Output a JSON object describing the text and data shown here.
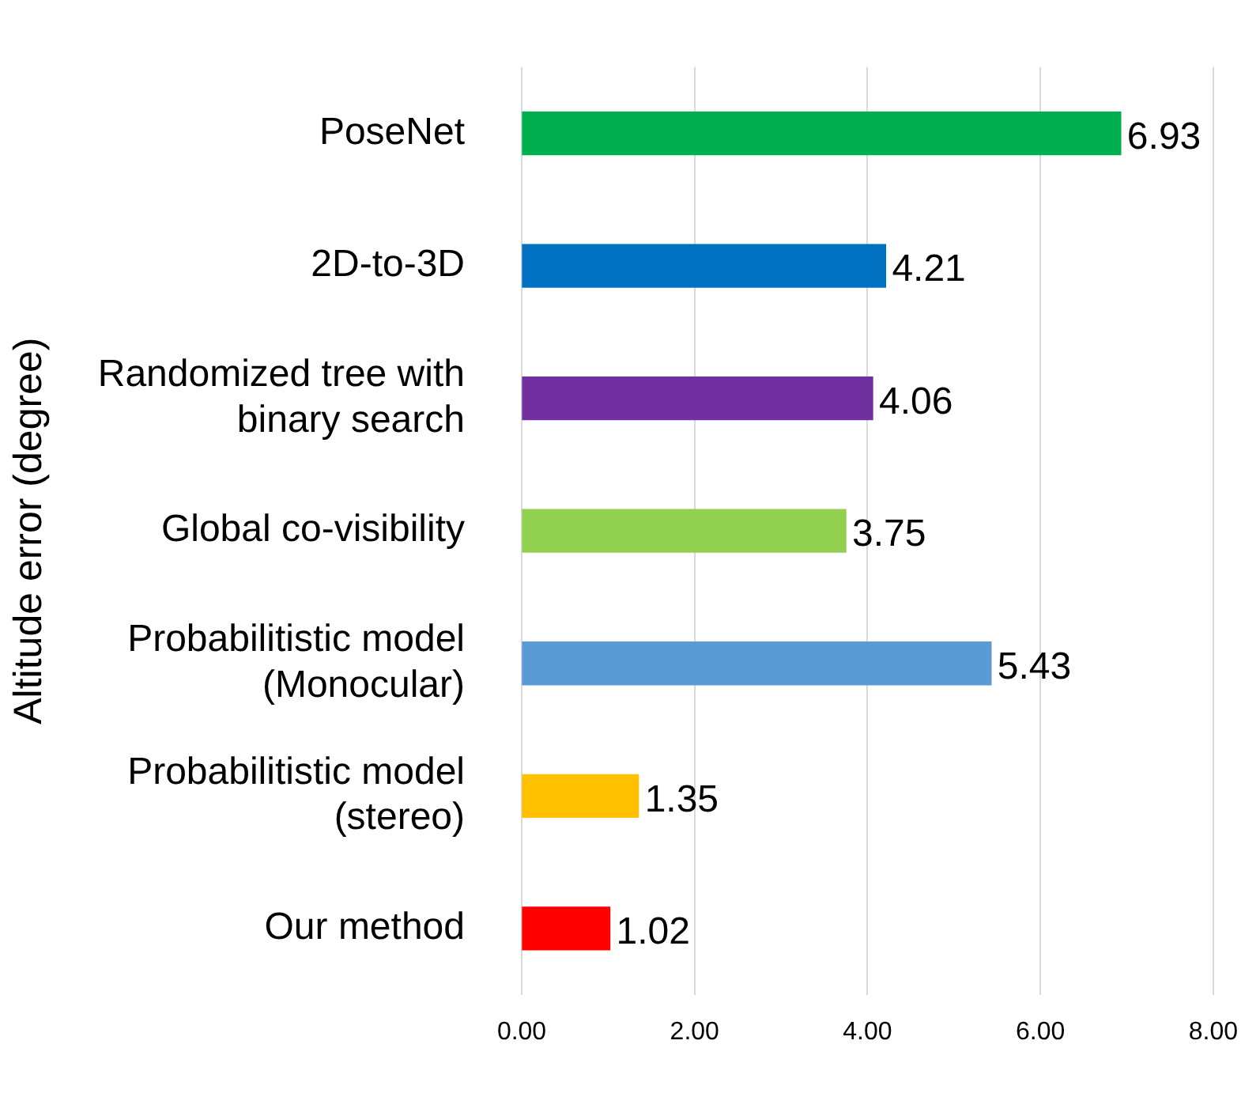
{
  "chart_data": {
    "type": "bar",
    "orientation": "horizontal",
    "ylabel": "Altitude error (degree)",
    "categories": [
      "PoseNet",
      "2D-to-3D",
      "Randomized tree with\nbinary search",
      "Global co-visibility",
      "Probabilitistic model\n(Monocular)",
      "Probabilitistic model\n(stereo)",
      "Our method"
    ],
    "values": [
      6.93,
      4.21,
      4.06,
      3.75,
      5.43,
      1.35,
      1.02
    ],
    "colors": [
      "#00b050",
      "#0070c0",
      "#7030a0",
      "#92d050",
      "#5b9bd5",
      "#ffc000",
      "#ff0000"
    ],
    "xlim": [
      0,
      8
    ],
    "xticks": [
      {
        "value": 0,
        "label": "0.00"
      },
      {
        "value": 2,
        "label": "2.00"
      },
      {
        "value": 4,
        "label": "4.00"
      },
      {
        "value": 6,
        "label": "6.00"
      },
      {
        "value": 8,
        "label": "8.00"
      }
    ],
    "grid": "x",
    "data_labels": true,
    "legend": false
  }
}
